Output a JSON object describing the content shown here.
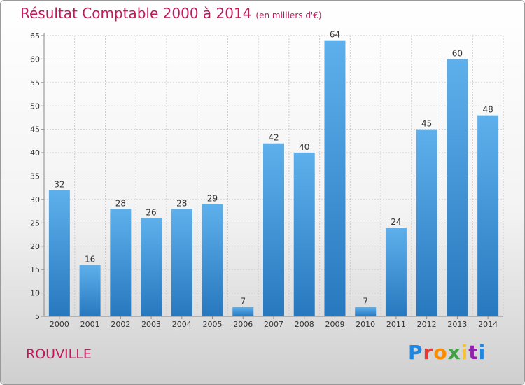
{
  "header": {
    "title": "Résultat Comptable 2000 à 2014",
    "subtitle": "(en milliers d'€)"
  },
  "footer": {
    "city": "ROUVILLE",
    "logo": "Proxiti"
  },
  "colors": {
    "bar": "#3a8fd6",
    "title": "#c2185b",
    "grid": "#cccccc"
  },
  "chart_data": {
    "type": "bar",
    "title": "Résultat Comptable 2000 à 2014",
    "categories": [
      "2000",
      "2001",
      "2002",
      "2003",
      "2004",
      "2005",
      "2006",
      "2007",
      "2008",
      "2009",
      "2010",
      "2011",
      "2012",
      "2013",
      "2014"
    ],
    "values": [
      32,
      16,
      28,
      26,
      28,
      29,
      7,
      42,
      40,
      64,
      7,
      24,
      45,
      60,
      48
    ],
    "yticks": [
      5,
      10,
      15,
      20,
      25,
      30,
      35,
      40,
      45,
      50,
      55,
      60,
      65
    ],
    "ylim": [
      5,
      65
    ],
    "grid": true,
    "legend": "none"
  }
}
